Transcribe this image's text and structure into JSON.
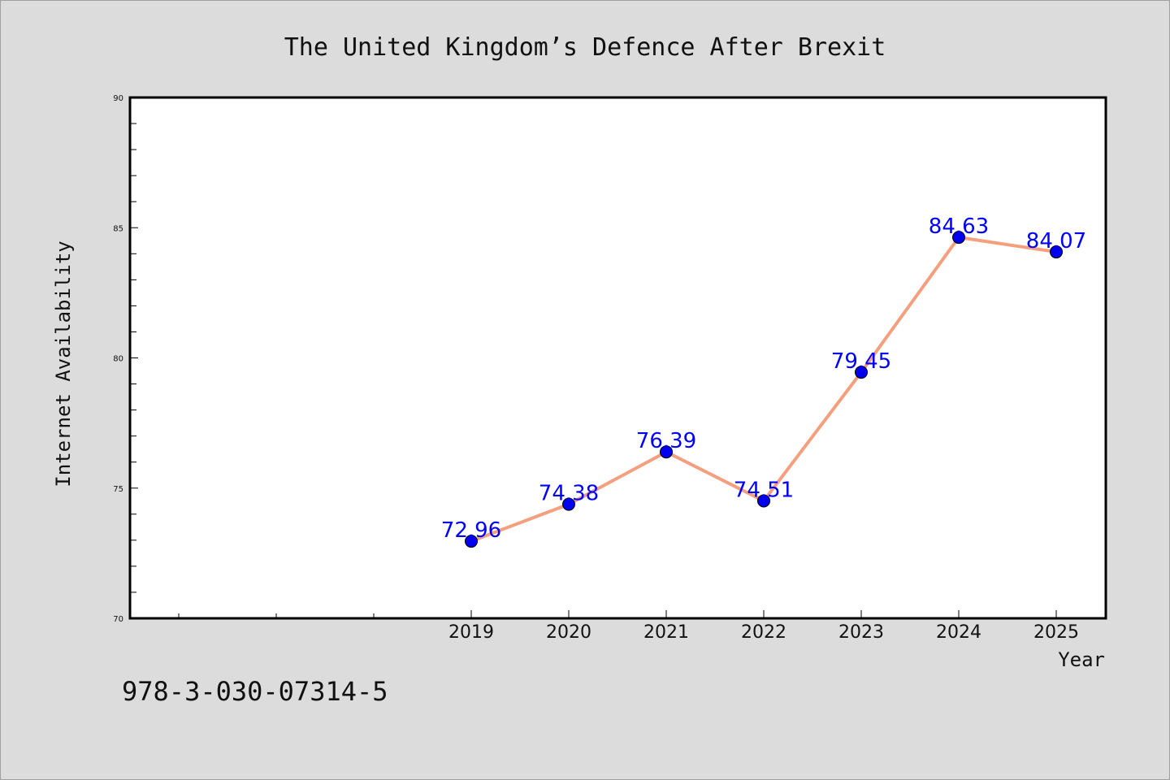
{
  "chart_data": {
    "type": "line",
    "title": "The United Kingdom’s Defence After Brexit",
    "xlabel": "Year",
    "ylabel": "Internet Availability",
    "x": [
      "2019",
      "2020",
      "2021",
      "2022",
      "2023",
      "2024",
      "2025"
    ],
    "series": [
      {
        "values": [
          72.96,
          74.38,
          76.39,
          74.51,
          79.45,
          84.63,
          84.07
        ],
        "data_labels": [
          "72.96",
          "74.38",
          "76.39",
          "74.51",
          "79.45",
          "84.63",
          "84.07"
        ]
      }
    ],
    "x_ticks": [
      "2019",
      "2020",
      "2021",
      "2022",
      "2023",
      "2024",
      "2025"
    ],
    "y_ticks": [
      "70",
      "75",
      "80",
      "85",
      "90"
    ],
    "ylim": [
      70,
      90
    ],
    "grid": false,
    "legend": "none"
  },
  "footer": {
    "isbn": "978-3-030-07314-5"
  },
  "colors": {
    "background": "#dcdcdc",
    "plot_background": "#ffffff",
    "line": "#f4a07f",
    "marker": "#0000ee",
    "data_label": "#0000ff",
    "text": "#111111"
  }
}
